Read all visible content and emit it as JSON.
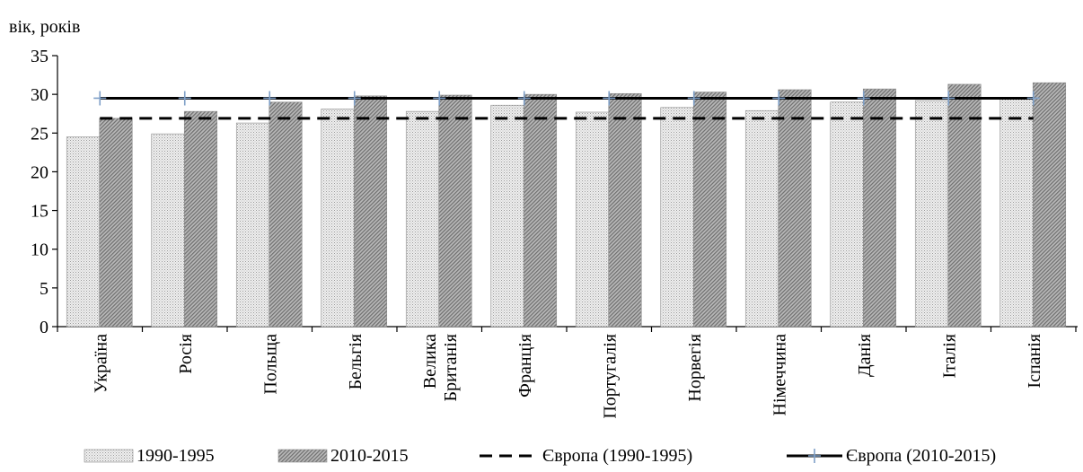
{
  "chart_data": {
    "type": "bar",
    "ylabel": "вік, років",
    "ylim": [
      0,
      35
    ],
    "yticks": [
      0,
      5,
      10,
      15,
      20,
      25,
      30,
      35
    ],
    "categories": [
      [
        "Україна"
      ],
      [
        "Росія"
      ],
      [
        "Польща"
      ],
      [
        "Бельгія"
      ],
      [
        "Велика",
        "Британія"
      ],
      [
        "Франція"
      ],
      [
        "Португалія"
      ],
      [
        "Норвегія"
      ],
      [
        "Німеччина"
      ],
      [
        "Данія"
      ],
      [
        "Італія"
      ],
      [
        "Іспанія"
      ]
    ],
    "series": [
      {
        "name": "1990-1995",
        "values": [
          24.5,
          24.9,
          26.3,
          28.1,
          27.8,
          28.6,
          27.7,
          28.3,
          27.9,
          29.0,
          29.2,
          29.4
        ]
      },
      {
        "name": "2010-2015",
        "values": [
          26.9,
          27.8,
          29.0,
          29.8,
          29.9,
          30.0,
          30.1,
          30.3,
          30.6,
          30.7,
          31.3,
          31.5
        ]
      }
    ],
    "reference_lines": [
      {
        "name": "Європа (1990-1995)",
        "value": 26.9,
        "style": "dashed"
      },
      {
        "name": "Європа (2010-2015)",
        "value": 29.5,
        "style": "solid-with-plus-markers"
      }
    ],
    "grid": false,
    "legend_position": "bottom"
  },
  "colors": {
    "series1_fill": "#e8e8e8",
    "series2_fill": "#a6a6a6",
    "line": "#000000",
    "marker": "#7fa0c8"
  }
}
